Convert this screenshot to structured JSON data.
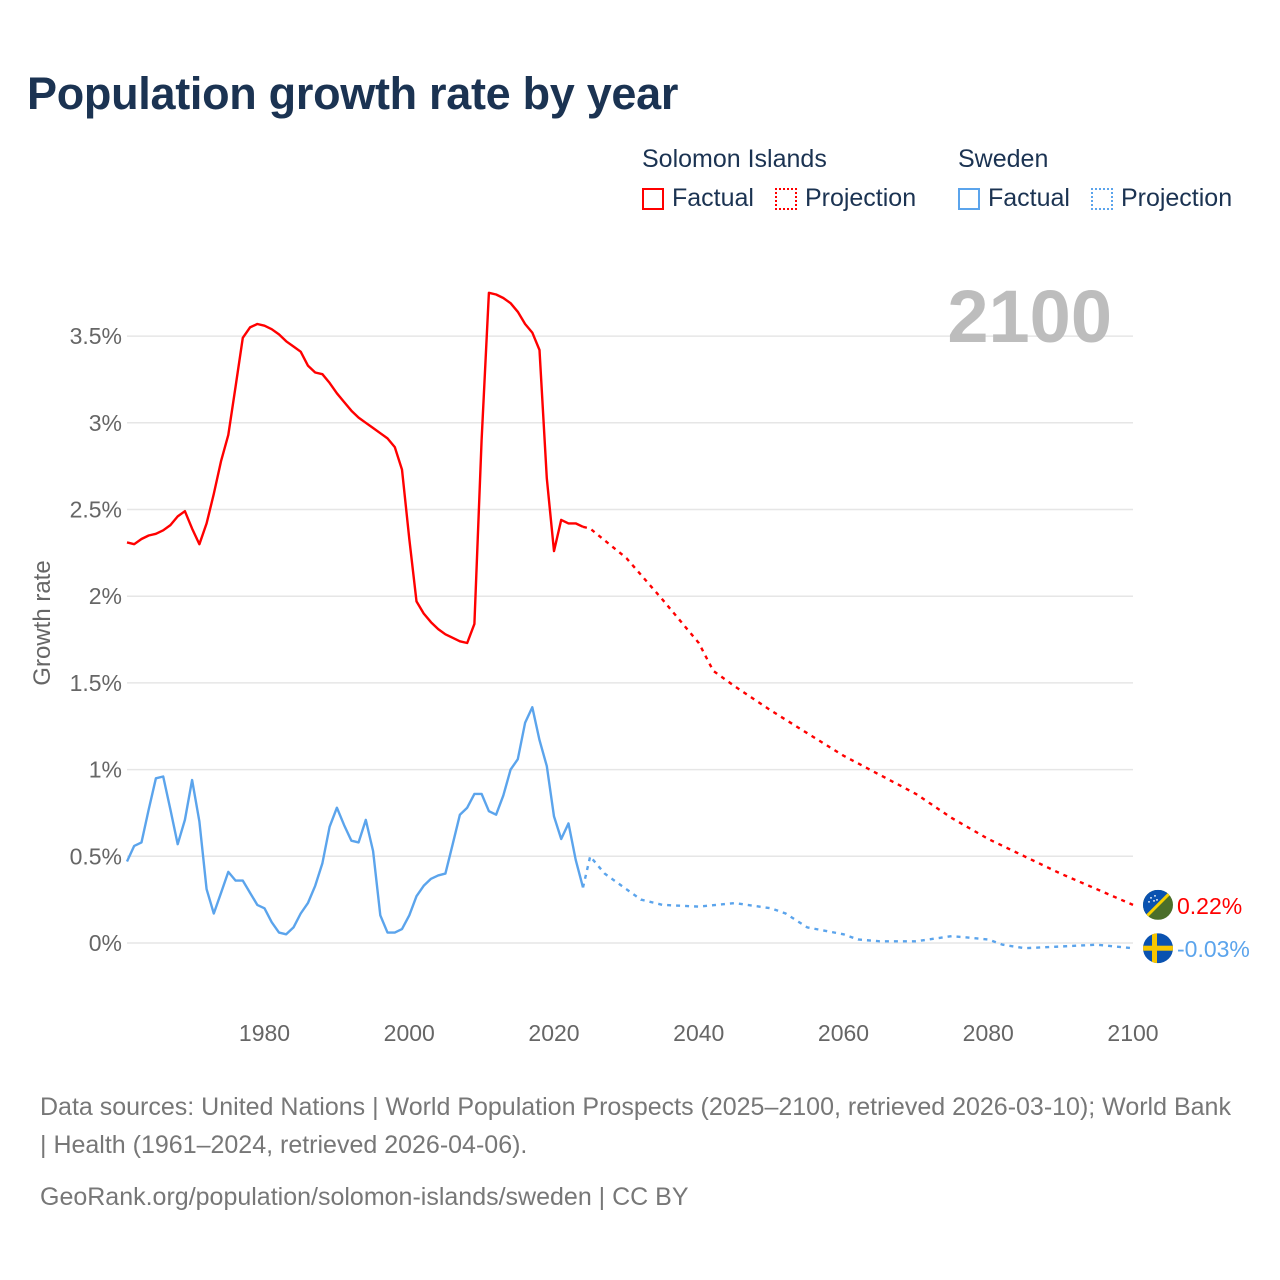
{
  "title": "Population growth rate by year",
  "legend": {
    "groups": [
      {
        "name": "Solomon Islands",
        "factual": "Factual",
        "projection": "Projection",
        "color": "#ff0000"
      },
      {
        "name": "Sweden",
        "factual": "Factual",
        "projection": "Projection",
        "color": "#5ba4ec"
      }
    ]
  },
  "footer": {
    "sources": "Data sources: United Nations | World Population Prospects (2025–2100, retrieved 2026-03-10); World Bank | Health (1961–2024, retrieved 2026-04-06).",
    "url": "GeoRank.org/population/solomon-islands/sweden | CC BY"
  },
  "chart_data": {
    "type": "line",
    "title": "Population growth rate by year",
    "year_label": "2100",
    "xlabel": "",
    "ylabel": "Growth rate",
    "xlim": [
      1961,
      2100
    ],
    "ylim": [
      -0.3,
      3.85
    ],
    "xticks": [
      {
        "v": 1980,
        "label": "1980"
      },
      {
        "v": 2000,
        "label": "2000"
      },
      {
        "v": 2020,
        "label": "2020"
      },
      {
        "v": 2040,
        "label": "2040"
      },
      {
        "v": 2060,
        "label": "2060"
      },
      {
        "v": 2080,
        "label": "2080"
      },
      {
        "v": 2100,
        "label": "2100"
      }
    ],
    "yticks": [
      {
        "v": 0,
        "label": "0%"
      },
      {
        "v": 0.5,
        "label": "0.5%"
      },
      {
        "v": 1,
        "label": "1%"
      },
      {
        "v": 1.5,
        "label": "1.5%"
      },
      {
        "v": 2,
        "label": "2%"
      },
      {
        "v": 2.5,
        "label": "2.5%"
      },
      {
        "v": 3,
        "label": "3%"
      },
      {
        "v": 3.5,
        "label": "3.5%"
      }
    ],
    "grid": true,
    "legend_position": "top-right",
    "series": [
      {
        "name": "Solomon Islands",
        "color": "#ff0000",
        "end_label": "0.22%",
        "flag": "solomon-islands",
        "factual": {
          "x": [
            1961,
            1962,
            1963,
            1964,
            1965,
            1966,
            1967,
            1968,
            1969,
            1970,
            1971,
            1972,
            1973,
            1974,
            1975,
            1976,
            1977,
            1978,
            1979,
            1980,
            1981,
            1982,
            1983,
            1984,
            1985,
            1986,
            1987,
            1988,
            1989,
            1990,
            1991,
            1992,
            1993,
            1994,
            1995,
            1996,
            1997,
            1998,
            1999,
            2000,
            2001,
            2002,
            2003,
            2004,
            2005,
            2006,
            2007,
            2008,
            2009,
            2010,
            2011,
            2012,
            2013,
            2014,
            2015,
            2016,
            2017,
            2018,
            2019,
            2020,
            2021,
            2022,
            2023,
            2024
          ],
          "y": [
            2.31,
            2.3,
            2.33,
            2.35,
            2.36,
            2.38,
            2.41,
            2.46,
            2.49,
            2.39,
            2.3,
            2.42,
            2.59,
            2.78,
            2.93,
            3.21,
            3.49,
            3.55,
            3.57,
            3.56,
            3.54,
            3.51,
            3.47,
            3.44,
            3.41,
            3.33,
            3.29,
            3.28,
            3.23,
            3.17,
            3.12,
            3.07,
            3.03,
            3.0,
            2.97,
            2.94,
            2.91,
            2.86,
            2.73,
            2.33,
            1.97,
            1.9,
            1.85,
            1.81,
            1.78,
            1.76,
            1.74,
            1.73,
            1.84,
            2.9,
            3.75,
            3.74,
            3.72,
            3.69,
            3.64,
            3.57,
            3.52,
            3.42,
            2.68,
            2.26,
            2.44,
            2.42,
            2.42,
            2.4
          ]
        },
        "projection": {
          "x": [
            2025,
            2030,
            2035,
            2040,
            2042,
            2045,
            2050,
            2055,
            2060,
            2065,
            2070,
            2075,
            2080,
            2085,
            2090,
            2095,
            2100
          ],
          "y": [
            2.39,
            2.22,
            1.98,
            1.73,
            1.57,
            1.48,
            1.34,
            1.21,
            1.08,
            0.97,
            0.86,
            0.72,
            0.6,
            0.5,
            0.4,
            0.31,
            0.22
          ]
        }
      },
      {
        "name": "Sweden",
        "color": "#5ba4ec",
        "end_label": "-0.03%",
        "flag": "sweden",
        "factual": {
          "x": [
            1961,
            1962,
            1963,
            1964,
            1965,
            1966,
            1967,
            1968,
            1969,
            1970,
            1971,
            1972,
            1973,
            1974,
            1975,
            1976,
            1977,
            1978,
            1979,
            1980,
            1981,
            1982,
            1983,
            1984,
            1985,
            1986,
            1987,
            1988,
            1989,
            1990,
            1991,
            1992,
            1993,
            1994,
            1995,
            1996,
            1997,
            1998,
            1999,
            2000,
            2001,
            2002,
            2003,
            2004,
            2005,
            2006,
            2007,
            2008,
            2009,
            2010,
            2011,
            2012,
            2013,
            2014,
            2015,
            2016,
            2017,
            2018,
            2019,
            2020,
            2021,
            2022,
            2023,
            2024
          ],
          "y": [
            0.47,
            0.56,
            0.58,
            0.77,
            0.95,
            0.96,
            0.77,
            0.57,
            0.71,
            0.94,
            0.7,
            0.31,
            0.17,
            0.29,
            0.41,
            0.36,
            0.36,
            0.29,
            0.22,
            0.2,
            0.12,
            0.06,
            0.05,
            0.09,
            0.17,
            0.23,
            0.33,
            0.46,
            0.67,
            0.78,
            0.68,
            0.59,
            0.58,
            0.71,
            0.53,
            0.16,
            0.06,
            0.06,
            0.08,
            0.16,
            0.27,
            0.33,
            0.37,
            0.39,
            0.4,
            0.57,
            0.74,
            0.78,
            0.86,
            0.86,
            0.76,
            0.74,
            0.85,
            1.0,
            1.06,
            1.27,
            1.36,
            1.17,
            1.02,
            0.73,
            0.6,
            0.69,
            0.48,
            0.32
          ]
        },
        "projection": {
          "x": [
            2025,
            2026,
            2027,
            2028,
            2030,
            2032,
            2035,
            2040,
            2045,
            2050,
            2052,
            2055,
            2060,
            2062,
            2065,
            2070,
            2075,
            2080,
            2082,
            2085,
            2090,
            2095,
            2100
          ],
          "y": [
            0.5,
            0.45,
            0.4,
            0.37,
            0.31,
            0.25,
            0.22,
            0.21,
            0.23,
            0.2,
            0.17,
            0.09,
            0.05,
            0.02,
            0.01,
            0.01,
            0.04,
            0.02,
            -0.01,
            -0.03,
            -0.02,
            -0.01,
            -0.03
          ]
        }
      }
    ]
  }
}
